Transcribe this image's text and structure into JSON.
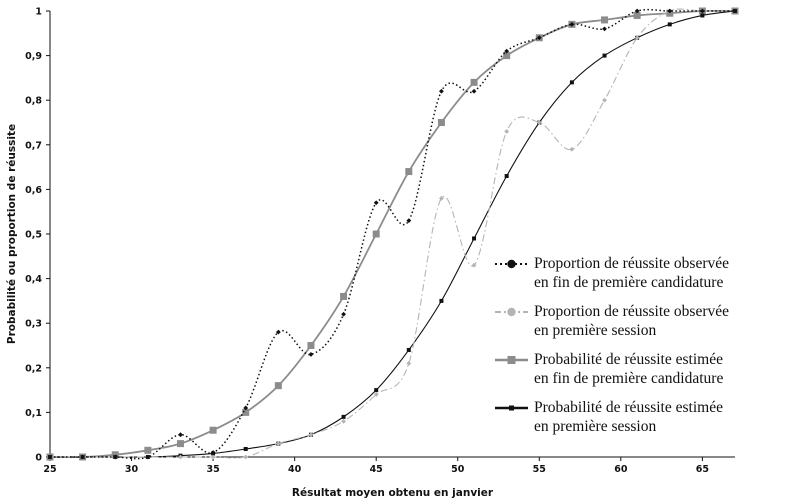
{
  "chart_data": {
    "type": "line",
    "xlabel": "Résultat moyen obtenu en janvier",
    "ylabel": "Probabilité ou proportion de réussite",
    "xlim": [
      25,
      67
    ],
    "ylim": [
      0,
      1
    ],
    "xticks": [
      25,
      30,
      35,
      40,
      45,
      50,
      55,
      60,
      65
    ],
    "xtick_labels": [
      "25",
      "30",
      "35",
      "40",
      "45",
      "50",
      "55",
      "60",
      "65"
    ],
    "yticks": [
      0,
      0.1,
      0.2,
      0.3,
      0.4,
      0.5,
      0.6,
      0.7,
      0.8,
      0.9,
      1
    ],
    "ytick_labels": [
      "0",
      "0,1",
      "0,2",
      "0,3",
      "0,4",
      "0,5",
      "0,6",
      "0,7",
      "0,8",
      "0,9",
      "1"
    ],
    "grid": false,
    "legend_position": "right",
    "series": [
      {
        "name": "Proportion de réussite observée en fin de première candidature",
        "legend_lines": [
          "Proportion de réussite observée",
          "en fin de première candidature"
        ],
        "color": "#111111",
        "line_style": "dotted",
        "marker": "diamond",
        "x": [
          25,
          27,
          29,
          31,
          33,
          35,
          37,
          39,
          41,
          43,
          45,
          47,
          49,
          51,
          53,
          55,
          57,
          59,
          61,
          63,
          65,
          67
        ],
        "y": [
          0,
          0,
          0,
          0,
          0.05,
          0.01,
          0.11,
          0.28,
          0.23,
          0.32,
          0.57,
          0.53,
          0.82,
          0.82,
          0.91,
          0.94,
          0.97,
          0.96,
          1,
          1,
          1,
          1
        ]
      },
      {
        "name": "Proportion de réussite observée en première session",
        "legend_lines": [
          "Proportion de réussite observée",
          "en première session"
        ],
        "color": "#b4b4b4",
        "line_style": "dashdot",
        "marker": "diamond",
        "x": [
          25,
          27,
          29,
          31,
          33,
          35,
          37,
          39,
          41,
          43,
          45,
          47,
          49,
          51,
          53,
          55,
          57,
          59,
          61,
          63,
          65,
          67
        ],
        "y": [
          0,
          0,
          0,
          0,
          0,
          0,
          0,
          0.03,
          0.05,
          0.08,
          0.14,
          0.21,
          0.58,
          0.43,
          0.73,
          0.75,
          0.69,
          0.8,
          0.94,
          1,
          1,
          1
        ]
      },
      {
        "name": "Probabilité de réussite estimée en fin de première candidature",
        "legend_lines": [
          "Probabilité de réussite estimée",
          "en fin de première candidature"
        ],
        "color": "#8c8c8c",
        "line_style": "solid",
        "marker": "square",
        "x": [
          25,
          27,
          29,
          31,
          33,
          35,
          37,
          39,
          41,
          43,
          45,
          47,
          49,
          51,
          53,
          55,
          57,
          59,
          61,
          63,
          65,
          67
        ],
        "y": [
          0,
          0,
          0.005,
          0.015,
          0.03,
          0.06,
          0.1,
          0.16,
          0.25,
          0.36,
          0.5,
          0.64,
          0.75,
          0.84,
          0.9,
          0.94,
          0.97,
          0.98,
          0.99,
          0.995,
          1,
          1
        ]
      },
      {
        "name": "Probabilité de réussite estimée en première session",
        "legend_lines": [
          "Probabilité de réussite estimée",
          "en première session"
        ],
        "color": "#111111",
        "line_style": "solid",
        "marker": "square-small",
        "x": [
          25,
          27,
          29,
          31,
          33,
          35,
          37,
          39,
          41,
          43,
          45,
          47,
          49,
          51,
          53,
          55,
          57,
          59,
          61,
          63,
          65,
          67
        ],
        "y": [
          0,
          0,
          0,
          0,
          0.003,
          0.008,
          0.018,
          0.03,
          0.05,
          0.09,
          0.15,
          0.24,
          0.35,
          0.49,
          0.63,
          0.75,
          0.84,
          0.9,
          0.94,
          0.97,
          0.99,
          1
        ]
      }
    ]
  }
}
